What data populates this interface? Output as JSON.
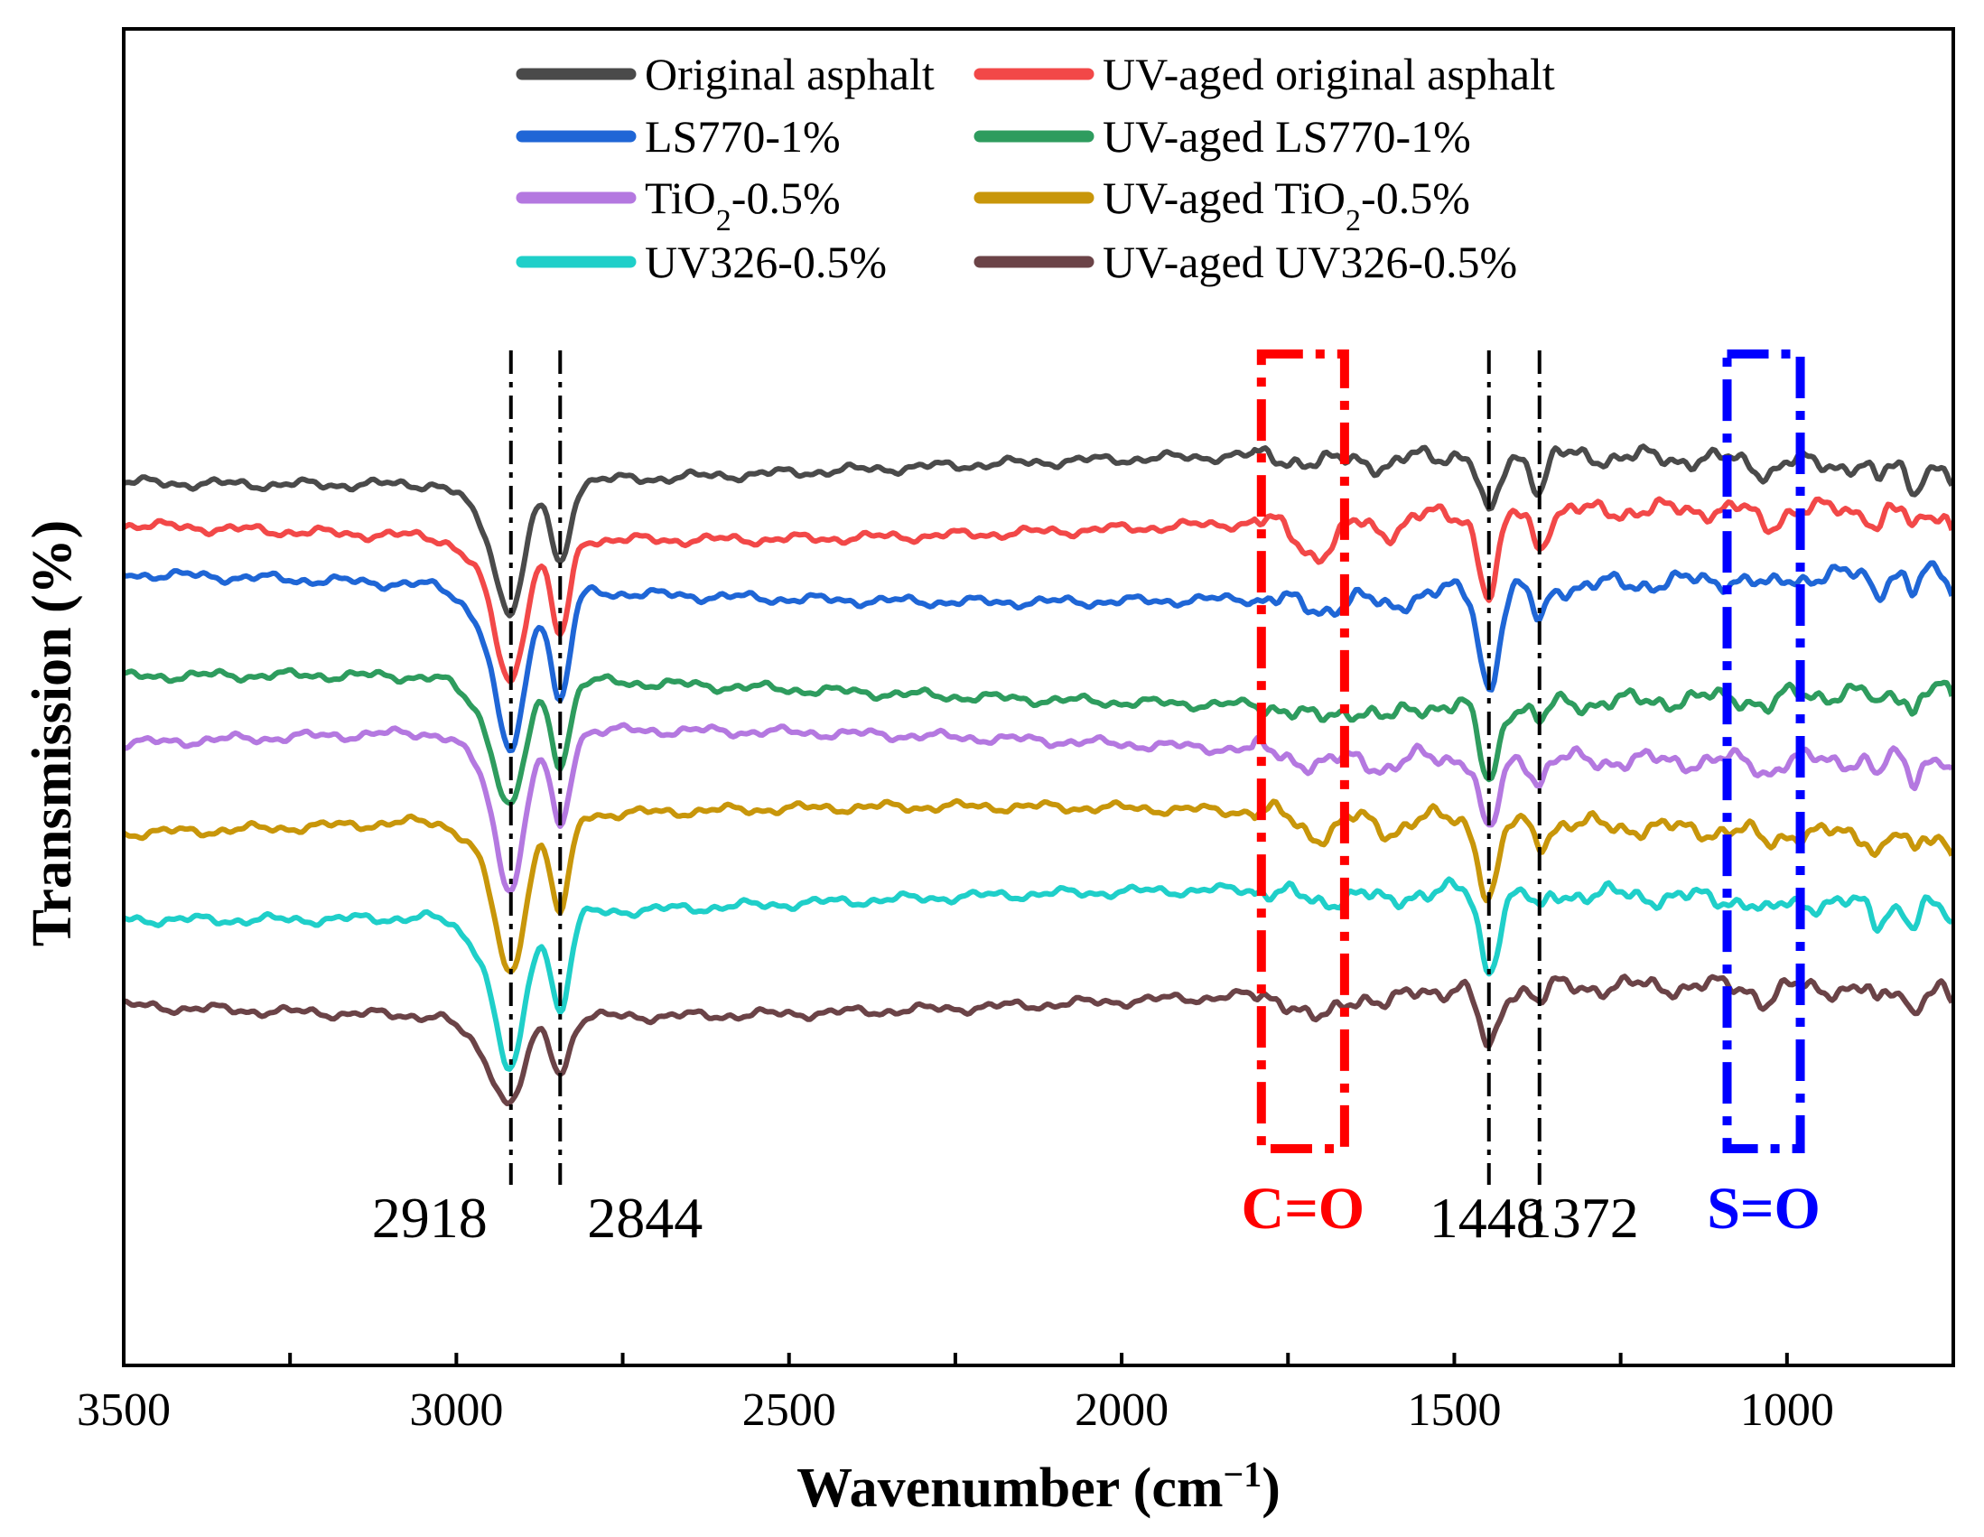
{
  "chart_data": {
    "type": "line",
    "xlabel": "Wavenumber (cm",
    "xlabel_sup": "−1",
    "xlabel_tail": ")",
    "ylabel": "Transmission (%)",
    "xlim": [
      3500,
      750
    ],
    "x_reversed": true,
    "xticks": [
      3500,
      3000,
      2500,
      2000,
      1500,
      1000
    ],
    "yticks_shown": false,
    "legend_position": "top-center",
    "grid": false,
    "series": [
      {
        "name": "Original asphalt",
        "name_main": "Original asphalt",
        "name_sub": "",
        "name_tail": "",
        "color": "#4a4a4a",
        "baseline": 100,
        "dip2918": 17,
        "dip2844": 12,
        "dip1448": 9,
        "dip1372": 5,
        "co": 1.5,
        "so": 1.5
      },
      {
        "name": "UV-aged original asphalt",
        "name_main": "UV-aged original asphalt",
        "name_sub": "",
        "name_tail": "",
        "color": "#f24848",
        "baseline": 92,
        "dip2918": 19,
        "dip2844": 14,
        "dip1448": 12,
        "dip1372": 5,
        "co": 5,
        "so": 2.5
      },
      {
        "name": "LS770-1%",
        "name_main": "LS770-1%",
        "name_sub": "",
        "name_tail": "",
        "color": "#1f66d6",
        "baseline": 83,
        "dip2918": 22,
        "dip2844": 16,
        "dip1448": 14,
        "dip1372": 5,
        "co": 2,
        "so": 1.5
      },
      {
        "name": "UV-aged LS770-1%",
        "name_main": "UV-aged LS770-1%",
        "name_sub": "",
        "name_tail": "",
        "color": "#2e9c5e",
        "baseline": 68,
        "dip2918": 17,
        "dip2844": 12,
        "dip1448": 11,
        "dip1372": 3,
        "co": 2,
        "so": 1.5
      },
      {
        "name": "TiO2-0.5%",
        "name_main": "TiO",
        "name_sub": "2",
        "name_tail": "-0.5%",
        "color": "#b478e0",
        "baseline": 60,
        "dip2918": 21,
        "dip2844": 14,
        "dip1448": 11,
        "dip1372": 3,
        "co": 2,
        "so": 1.5
      },
      {
        "name": "UV-aged TiO2-0.5%",
        "name_main": "UV-aged TiO",
        "name_sub": "2",
        "name_tail": "-0.5%",
        "color": "#c8960a",
        "baseline": 49,
        "dip2918": 21,
        "dip2844": 14,
        "dip1448": 11,
        "dip1372": 3,
        "co": 3,
        "so": 1.5
      },
      {
        "name": "UV326-0.5%",
        "name_main": "UV326-0.5%",
        "name_sub": "",
        "name_tail": "",
        "color": "#1fcfc9",
        "baseline": 37,
        "dip2918": 21,
        "dip2844": 14,
        "dip1448": 11,
        "dip1372": 3,
        "co": 2,
        "so": 2
      },
      {
        "name": "UV-aged UV326-0.5%",
        "name_main": "UV-aged UV326-0.5%",
        "name_sub": "",
        "name_tail": "",
        "color": "#6b4347",
        "baseline": 23,
        "dip2918": 11,
        "dip2844": 8,
        "dip1448": 9,
        "dip1372": 2,
        "co": 4,
        "so": 2
      }
    ],
    "peak_lines": [
      {
        "wavenumber": 2918,
        "label": "2918",
        "label_side": "left"
      },
      {
        "wavenumber": 2844,
        "label": "2844",
        "label_side": "right"
      },
      {
        "wavenumber": 1448,
        "label": "1448",
        "label_side": "center"
      },
      {
        "wavenumber": 1372,
        "label": "1372",
        "label_side": "center"
      }
    ],
    "region_boxes": [
      {
        "label": "C=O",
        "x_from": 1790,
        "x_to": 1665,
        "color": "#ff0000"
      },
      {
        "label": "S=O",
        "x_from": 1090,
        "x_to": 980,
        "color": "#0000ff"
      }
    ]
  }
}
